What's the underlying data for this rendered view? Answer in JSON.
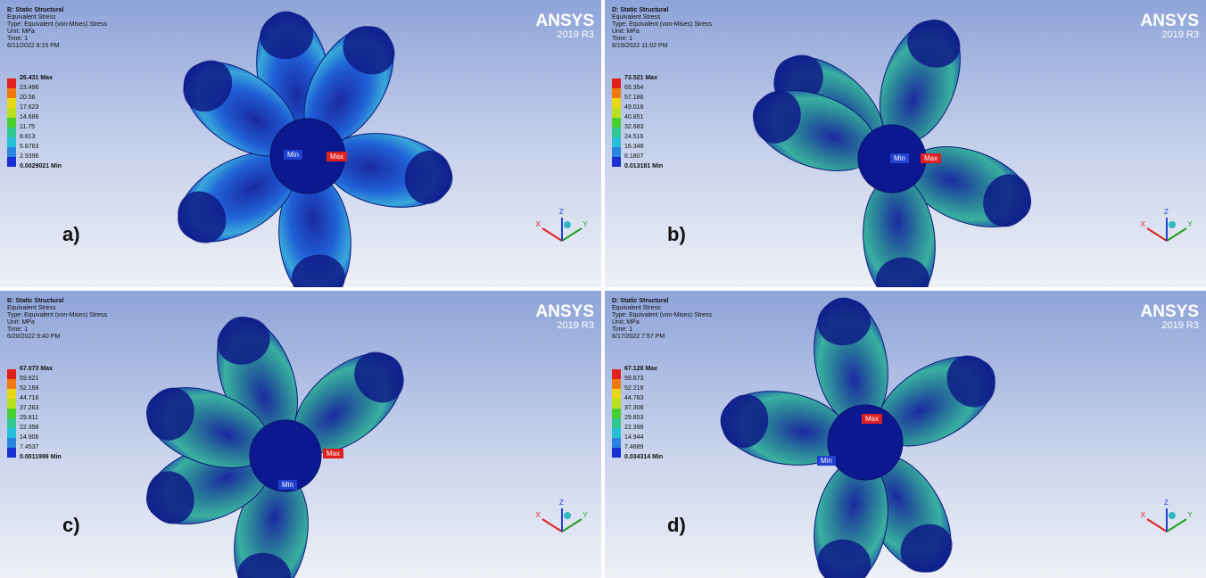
{
  "panels": [
    {
      "header": [
        "B: Static Structural",
        "Equivalent Stress",
        "Type: Equivalent (von-Mises) Stress",
        "Unit: MPa",
        "Time: 1",
        "6/11/2022 8:15 PM"
      ],
      "legend": [
        "26.431 Max",
        "23.496",
        "20.56",
        "17.623",
        "14.686",
        "11.75",
        "8.813",
        "5.8763",
        "2.9396",
        "0.0029021 Min"
      ],
      "logo": "ANSYS",
      "version": "2019 R3",
      "min_tag": "Min",
      "max_tag": "Max",
      "label": "a)",
      "axes": [
        "X",
        "Y",
        "Z"
      ]
    },
    {
      "header": [
        "D: Static Structural",
        "Equivalent Stress",
        "Type: Equivalent (von-Mises) Stress",
        "Unit: MPa",
        "Time: 1",
        "6/19/2022 11:02 PM"
      ],
      "legend": [
        "73.521 Max",
        "65.354",
        "57.186",
        "49.018",
        "40.851",
        "32.683",
        "24.516",
        "16.348",
        "8.1807",
        "0.013181 Min"
      ],
      "logo": "ANSYS",
      "version": "2019 R3",
      "min_tag": "Min",
      "max_tag": "Max",
      "label": "b)",
      "axes": [
        "X",
        "Y",
        "Z"
      ]
    },
    {
      "header": [
        "B: Static Structural",
        "Equivalent Stress",
        "Type: Equivalent (von-Mises) Stress",
        "Unit: MPa",
        "Time: 1",
        "6/20/2022 9:40 PM"
      ],
      "legend": [
        "67.073 Max",
        "59.621",
        "52.168",
        "44.716",
        "37.263",
        "29.811",
        "22.358",
        "14.906",
        "7.4537",
        "0.0011999 Min"
      ],
      "logo": "ANSYS",
      "version": "2019 R3",
      "min_tag": "Min",
      "max_tag": "Max",
      "label": "c)",
      "axes": [
        "X",
        "Y",
        "Z"
      ]
    },
    {
      "header": [
        "D: Static Structural",
        "Equivalent Stress",
        "Type: Equivalent (von-Mises) Stress",
        "Unit: MPa",
        "Time: 1",
        "6/17/2022 7:57 PM"
      ],
      "legend": [
        "67.128 Max",
        "59.673",
        "52.218",
        "44.763",
        "37.308",
        "29.853",
        "22.398",
        "14.944",
        "7.4889",
        "0.034314 Min"
      ],
      "logo": "ANSYS",
      "version": "2019 R3",
      "min_tag": "Min",
      "max_tag": "Max",
      "label": "d)",
      "axes": [
        "X",
        "Y",
        "Z"
      ]
    }
  ]
}
